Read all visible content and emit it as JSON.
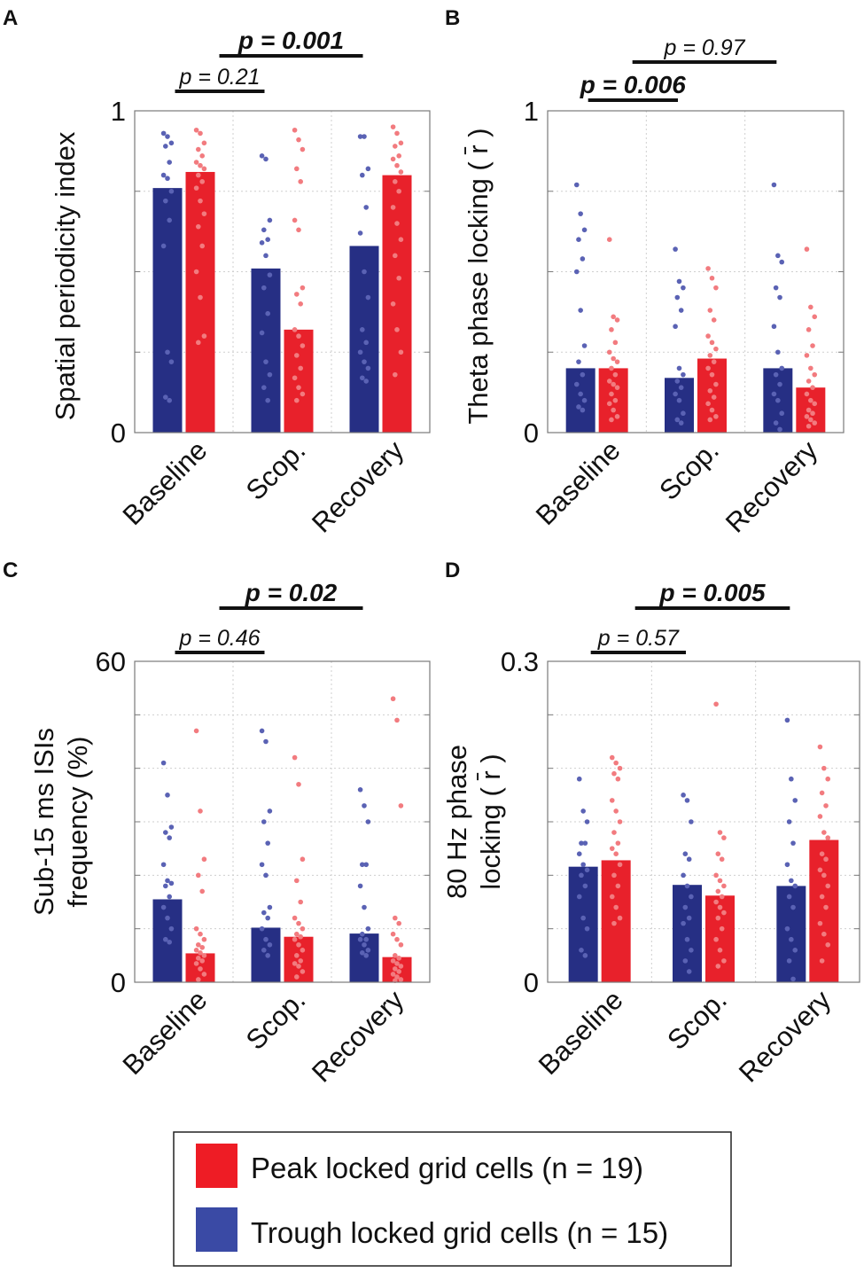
{
  "colors": {
    "peak_bar": "#e8212b",
    "trough_bar": "#262f84",
    "peak_dot": "#f27b7f",
    "trough_dot": "#5a62b4",
    "legend_peak": "#ee1c25",
    "legend_trough": "#3a4aa5"
  },
  "legend": {
    "peak": "Peak locked grid cells (n = 19)",
    "trough": "Trough locked grid cells (n = 15)"
  },
  "chart_data": [
    {
      "panel": "A",
      "type": "bar",
      "ylabel": "Spatial periodicity index",
      "ylim": [
        0,
        1
      ],
      "ticks": [
        0,
        0.25,
        0.5,
        0.75,
        1
      ],
      "tick_labels": [
        "0",
        "1"
      ],
      "tick_label_values": [
        0,
        1
      ],
      "categories": [
        "Baseline",
        "Scop.",
        "Recovery"
      ],
      "series": [
        {
          "name": "Trough locked grid cells",
          "values": [
            0.76,
            0.51,
            0.58
          ],
          "points": [
            [
              0.93,
              0.92,
              0.9,
              0.89,
              0.84,
              0.8,
              0.79,
              0.75,
              0.72,
              0.66,
              0.58,
              0.25,
              0.22,
              0.11,
              0.1
            ],
            [
              0.86,
              0.85,
              0.66,
              0.63,
              0.6,
              0.59,
              0.55,
              0.49,
              0.45,
              0.37,
              0.31,
              0.22,
              0.18,
              0.14,
              0.1
            ],
            [
              0.92,
              0.92,
              0.82,
              0.8,
              0.7,
              0.62,
              0.5,
              0.42,
              0.32,
              0.28,
              0.25,
              0.22,
              0.2,
              0.17,
              0.16
            ]
          ]
        },
        {
          "name": "Peak locked grid cells",
          "values": [
            0.81,
            0.32,
            0.8
          ],
          "points": [
            [
              0.94,
              0.93,
              0.9,
              0.88,
              0.86,
              0.84,
              0.83,
              0.82,
              0.8,
              0.78,
              0.76,
              0.72,
              0.68,
              0.64,
              0.58,
              0.5,
              0.42,
              0.3,
              0.28
            ],
            [
              0.94,
              0.91,
              0.88,
              0.82,
              0.78,
              0.66,
              0.63,
              0.45,
              0.43,
              0.4,
              0.32,
              0.3,
              0.27,
              0.24,
              0.2,
              0.17,
              0.14,
              0.12,
              0.1
            ],
            [
              0.95,
              0.93,
              0.9,
              0.89,
              0.86,
              0.85,
              0.83,
              0.81,
              0.78,
              0.75,
              0.7,
              0.65,
              0.6,
              0.55,
              0.48,
              0.4,
              0.32,
              0.25,
              0.18
            ]
          ]
        }
      ],
      "comparisons": [
        {
          "text": "p = 0.21",
          "from": 0,
          "to": 1,
          "bold": false
        },
        {
          "text": "p = 0.001",
          "from": 0,
          "to": 2,
          "bold": true
        }
      ]
    },
    {
      "panel": "B",
      "type": "bar",
      "ylabel": "Theta phase locking ( r̄ )",
      "ylim": [
        0,
        1
      ],
      "ticks": [
        0,
        0.25,
        0.5,
        0.75,
        1
      ],
      "tick_labels": [
        "0",
        "1"
      ],
      "tick_label_values": [
        0,
        1
      ],
      "categories": [
        "Baseline",
        "Scop.",
        "Recovery"
      ],
      "series": [
        {
          "name": "Trough locked grid cells",
          "values": [
            0.2,
            0.17,
            0.2
          ],
          "points": [
            [
              0.77,
              0.68,
              0.63,
              0.6,
              0.54,
              0.5,
              0.38,
              0.27,
              0.22,
              0.18,
              0.15,
              0.12,
              0.1,
              0.08,
              0.07
            ],
            [
              0.57,
              0.47,
              0.45,
              0.42,
              0.38,
              0.33,
              0.2,
              0.18,
              0.16,
              0.14,
              0.12,
              0.1,
              0.06,
              0.04,
              0.03
            ],
            [
              0.77,
              0.55,
              0.53,
              0.45,
              0.42,
              0.33,
              0.25,
              0.2,
              0.18,
              0.15,
              0.12,
              0.1,
              0.06,
              0.03,
              0.01
            ]
          ]
        },
        {
          "name": "Peak locked grid cells",
          "values": [
            0.2,
            0.23,
            0.14
          ],
          "points": [
            [
              0.6,
              0.36,
              0.35,
              0.32,
              0.28,
              0.25,
              0.23,
              0.22,
              0.2,
              0.18,
              0.16,
              0.15,
              0.14,
              0.12,
              0.1,
              0.09,
              0.07,
              0.05,
              0.04
            ],
            [
              0.51,
              0.48,
              0.45,
              0.38,
              0.35,
              0.3,
              0.28,
              0.26,
              0.24,
              0.22,
              0.2,
              0.18,
              0.15,
              0.13,
              0.11,
              0.09,
              0.07,
              0.05,
              0.04
            ],
            [
              0.57,
              0.39,
              0.36,
              0.32,
              0.27,
              0.24,
              0.2,
              0.18,
              0.16,
              0.14,
              0.12,
              0.1,
              0.09,
              0.07,
              0.06,
              0.05,
              0.04,
              0.03,
              0.02
            ]
          ]
        }
      ],
      "comparisons": [
        {
          "text": "p = 0.006",
          "from": 0,
          "to": 1,
          "bold": true
        },
        {
          "text": "p = 0.97",
          "from": 0,
          "to": 2,
          "bold": false
        }
      ]
    },
    {
      "panel": "C",
      "type": "bar",
      "ylabel_lines": [
        "Sub-15 ms ISIs",
        "frequency (%)"
      ],
      "ylim": [
        0,
        60
      ],
      "ticks": [
        0,
        10,
        20,
        30,
        40,
        50,
        60
      ],
      "tick_labels": [
        "0",
        "60"
      ],
      "tick_label_values": [
        0,
        60
      ],
      "categories": [
        "Baseline",
        "Scop.",
        "Recovery"
      ],
      "series": [
        {
          "name": "Trough locked grid cells",
          "values": [
            15.5,
            10.2,
            9.1
          ],
          "points": [
            [
              41,
              35,
              29,
              28,
              27,
              22,
              19,
              18.5,
              18,
              16,
              14,
              12,
              10,
              8,
              7.5
            ],
            [
              47,
              45,
              32,
              30,
              26,
              22,
              20,
              14,
              13,
              12,
              10,
              8,
              7,
              6,
              5
            ],
            [
              36,
              33,
              30,
              22,
              22,
              18,
              14,
              10,
              9,
              8,
              8,
              7,
              6,
              5.5,
              5
            ]
          ]
        },
        {
          "name": "Peak locked grid cells",
          "values": [
            5.4,
            8.5,
            4.7
          ],
          "points": [
            [
              47,
              32,
              23,
              20,
              17,
              10,
              9,
              8,
              7,
              6.5,
              6,
              5.5,
              5,
              4.5,
              4,
              3.5,
              2.5,
              1.5,
              0.5
            ],
            [
              42,
              37,
              23,
              19,
              15,
              12,
              11,
              10,
              9,
              8.5,
              8,
              7,
              6,
              5,
              4,
              3.5,
              3,
              2,
              1
            ],
            [
              53,
              49,
              33,
              12,
              11,
              9,
              8,
              7,
              5,
              4.5,
              4,
              3.5,
              3,
              2.5,
              2,
              1.5,
              1,
              0.5,
              0.3
            ]
          ]
        }
      ],
      "comparisons": [
        {
          "text": "p = 0.46",
          "from": 0,
          "to": 1,
          "bold": false
        },
        {
          "text": "p = 0.02",
          "from": 0,
          "to": 2,
          "bold": true
        }
      ]
    },
    {
      "panel": "D",
      "type": "bar",
      "ylabel_lines": [
        "80 Hz phase",
        "locking ( r̄ )"
      ],
      "ylim": [
        0,
        0.3
      ],
      "ticks": [
        0,
        0.05,
        0.1,
        0.15,
        0.2,
        0.25,
        0.3
      ],
      "tick_labels": [
        "0",
        "0.3"
      ],
      "tick_label_values": [
        0,
        0.3
      ],
      "categories": [
        "Baseline",
        "Scop.",
        "Recovery"
      ],
      "series": [
        {
          "name": "Trough locked grid cells",
          "values": [
            0.108,
            0.091,
            0.09
          ],
          "points": [
            [
              0.19,
              0.16,
              0.15,
              0.13,
              0.13,
              0.12,
              0.11,
              0.105,
              0.1,
              0.09,
              0.08,
              0.06,
              0.05,
              0.03,
              0.025
            ],
            [
              0.175,
              0.17,
              0.15,
              0.12,
              0.115,
              0.1,
              0.09,
              0.08,
              0.07,
              0.06,
              0.055,
              0.04,
              0.03,
              0.02,
              0.01
            ],
            [
              0.245,
              0.19,
              0.17,
              0.15,
              0.13,
              0.11,
              0.095,
              0.09,
              0.08,
              0.07,
              0.05,
              0.04,
              0.03,
              0.02,
              0.003
            ]
          ]
        },
        {
          "name": "Peak locked grid cells",
          "values": [
            0.114,
            0.081,
            0.133
          ],
          "points": [
            [
              0.21,
              0.205,
              0.2,
              0.195,
              0.19,
              0.17,
              0.16,
              0.15,
              0.14,
              0.13,
              0.125,
              0.12,
              0.11,
              0.1,
              0.09,
              0.08,
              0.07,
              0.06,
              0.055
            ],
            [
              0.26,
              0.14,
              0.135,
              0.12,
              0.115,
              0.1,
              0.095,
              0.09,
              0.085,
              0.08,
              0.075,
              0.07,
              0.065,
              0.06,
              0.05,
              0.04,
              0.03,
              0.02,
              0.015
            ],
            [
              0.22,
              0.2,
              0.19,
              0.177,
              0.165,
              0.155,
              0.14,
              0.135,
              0.12,
              0.115,
              0.105,
              0.1,
              0.09,
              0.08,
              0.07,
              0.055,
              0.045,
              0.035,
              0.02
            ]
          ]
        }
      ],
      "comparisons": [
        {
          "text": "p = 0.57",
          "from": 0,
          "to": 1,
          "bold": false
        },
        {
          "text": "p = 0.005",
          "from": 0,
          "to": 2,
          "bold": true
        }
      ]
    }
  ]
}
